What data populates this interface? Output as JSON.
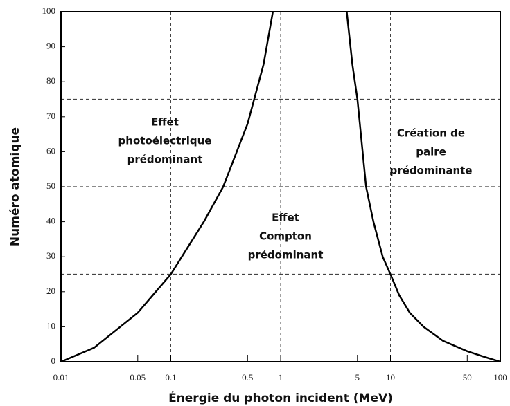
{
  "chart_data": {
    "type": "line",
    "x_label": "Énergie du photon incident (MeV)",
    "y_label": "Numéro atomique",
    "xscale": "log",
    "xlim": [
      0.01,
      100
    ],
    "ylim": [
      0,
      100
    ],
    "xticks": [
      0.01,
      0.05,
      0.1,
      0.5,
      1,
      5,
      10,
      50,
      100
    ],
    "yticks": [
      0,
      10,
      20,
      30,
      40,
      50,
      60,
      70,
      80,
      90,
      100
    ],
    "reference_lines": {
      "x": [
        0.1,
        1,
        10
      ],
      "y": [
        25,
        50,
        75
      ]
    },
    "series": [
      {
        "color": "#000000",
        "x": [
          0.01,
          0.02,
          0.05,
          0.1,
          0.2,
          0.3,
          0.5,
          0.7,
          0.85
        ],
        "values": [
          0,
          4,
          14,
          25,
          40,
          50,
          68,
          85,
          100
        ]
      },
      {
        "color": "#000000",
        "x": [
          4,
          4.5,
          5,
          6,
          7,
          8.5,
          10,
          12,
          15,
          20,
          30,
          50,
          70,
          100
        ],
        "values": [
          100,
          85,
          75,
          50,
          40,
          30,
          25,
          19,
          14,
          10,
          6,
          3,
          1.5,
          0
        ]
      }
    ],
    "annotations": [
      [
        "Effet",
        "photoélectrique",
        "prédominant"
      ],
      [
        "Effet",
        "Compton",
        "prédominant"
      ],
      [
        "Création de",
        "paire",
        "prédominante"
      ]
    ]
  }
}
